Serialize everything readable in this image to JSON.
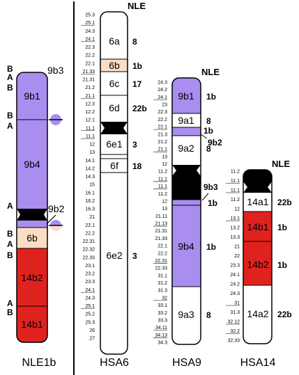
{
  "colors": {
    "purple": "#A98EF0",
    "peach": "#FBDCC4",
    "red": "#E0221F",
    "black": "#000000",
    "white": "#FFFFFF"
  },
  "chromosomes": [
    {
      "id": "nle1b",
      "label": "NLE1b",
      "side_letters": [
        "B",
        "A",
        "B",
        "B",
        "A",
        "A",
        "B",
        "A",
        "B",
        "A",
        "B"
      ],
      "segment_labels": [
        "9b1",
        "9b4",
        "6b",
        "14b2",
        "14b1"
      ],
      "region_labels": [
        "9b3",
        "9b2"
      ]
    },
    {
      "id": "hsa6",
      "label": "HSA6",
      "nle_tag": "NLE",
      "bands": [
        "25.3",
        "25.1",
        "24.3",
        "24.1",
        "22.3",
        "22.2",
        "22.1",
        "21.33",
        "21.31",
        "21.2",
        "21.1",
        "12.3",
        "12.2",
        "12.1",
        "11.1",
        "11.1",
        "12",
        "13",
        "14.1",
        "14.2",
        "14.3",
        "15",
        "16.1",
        "16.2",
        "16.3",
        "21",
        "22.1",
        "22.2",
        "22.31",
        "22.32",
        "22.33",
        "23.1",
        "23.2",
        "23.3",
        "24.1",
        "24.3",
        "25.1",
        "25.2",
        "25.3",
        "26",
        "27"
      ],
      "segments": [
        {
          "label": "6a",
          "size": "8"
        },
        {
          "label": "6b",
          "size": "1b"
        },
        {
          "label": "6c",
          "size": "17"
        },
        {
          "label": "6d",
          "size": "22b"
        },
        {
          "label": "6e1",
          "size": "3"
        },
        {
          "label": "6f",
          "size": "18"
        },
        {
          "label": "6e2",
          "size": "3"
        }
      ]
    },
    {
      "id": "hsa9",
      "label": "HSA9",
      "nle_tag": "NLE",
      "bands": [
        "24.3",
        "24.2",
        "24.1",
        "23",
        "22.3",
        "22.2",
        "22.1",
        "21.3",
        "21.2",
        "21.1",
        "13",
        "12",
        "11.2",
        "11.1",
        "11.1",
        "11.2",
        "12",
        "13",
        "21.11",
        "21.13",
        "21.31",
        "21.33",
        "22.1",
        "22.2",
        "22.31",
        "22.33",
        "31.1",
        "31.2",
        "31.3",
        "32",
        "33.1",
        "33.2",
        "33.3",
        "34.11",
        "34.13",
        "34.3"
      ],
      "segments": [
        {
          "label": "9b1",
          "size": "1b"
        },
        {
          "label": "9a1",
          "size": "8"
        },
        {
          "label": "9a2",
          "size": "8"
        },
        {
          "label": "9b4",
          "size": "1b"
        },
        {
          "label": "9a3",
          "size": "8"
        }
      ],
      "extra_labels": [
        "1b",
        "9b2",
        "9b3",
        "1b"
      ]
    },
    {
      "id": "hsa14",
      "label": "HSA14",
      "nle_tag": "NLE",
      "bands": [
        "11.2",
        "11.1",
        "11.1",
        "11.2",
        "12",
        "13.1",
        "13.2",
        "13.3",
        "21",
        "22",
        "23.3",
        "24.1",
        "24.2",
        "24.3",
        "31",
        "31.3",
        "32.12",
        "32.2",
        "32.33"
      ],
      "segments": [
        {
          "label": "14a1",
          "size": "22b"
        },
        {
          "label": "14b1",
          "size": "1b"
        },
        {
          "label": "14b2",
          "size": "1b"
        },
        {
          "label": "14a2",
          "size": "22b"
        }
      ]
    }
  ]
}
